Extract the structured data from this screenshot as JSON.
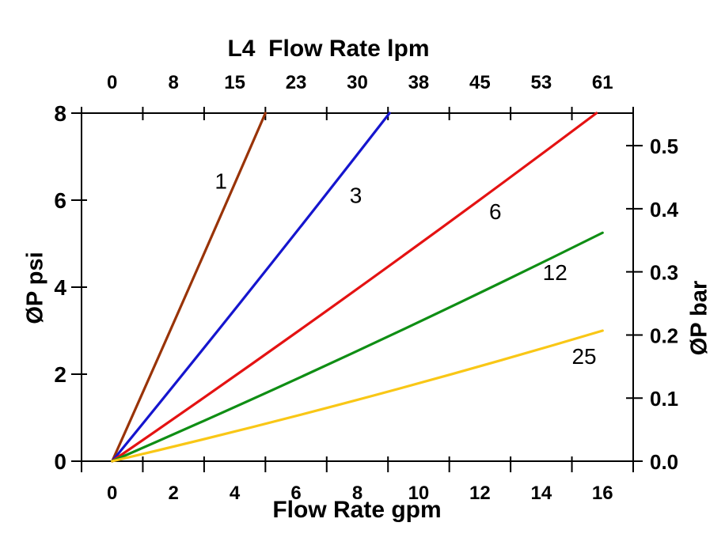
{
  "chart_data": {
    "type": "line",
    "title_top": "L4  Flow Rate lpm",
    "xlabel_bottom": "Flow Rate gpm",
    "ylabel_left": "ØP psi",
    "ylabel_right": "ØP bar",
    "x_axis_gpm": {
      "labels": [
        "0",
        "2",
        "4",
        "6",
        "8",
        "10",
        "12",
        "14",
        "16"
      ],
      "min": 0,
      "max": 16
    },
    "top_axis_lpm": {
      "labels": [
        "0",
        "8",
        "15",
        "23",
        "30",
        "38",
        "45",
        "53",
        "61"
      ]
    },
    "left_axis_psi": {
      "labels": [
        "0",
        "2",
        "4",
        "6",
        "8"
      ],
      "min": 0,
      "max": 8
    },
    "right_axis_bar": {
      "labels": [
        "0.0",
        "0.1",
        "0.2",
        "0.3",
        "0.4",
        "0.5"
      ],
      "psi_per_bar": 14.504
    },
    "grid": false,
    "legend": "labels-next-to-curves",
    "series": [
      {
        "name": "1",
        "color": "#993307",
        "points_gpm_psi": [
          [
            0,
            0
          ],
          [
            5.0,
            8.0
          ]
        ],
        "label": "1",
        "label_pos_gpm_psi": [
          3.55,
          6.45
        ]
      },
      {
        "name": "3",
        "color": "#1515CE",
        "points_gpm_psi": [
          [
            0,
            0
          ],
          [
            9.05,
            8.0
          ]
        ],
        "label": "3",
        "label_pos_gpm_psi": [
          7.95,
          6.12
        ]
      },
      {
        "name": "6",
        "color": "#E41212",
        "points_gpm_psi": [
          [
            0,
            0
          ],
          [
            15.8,
            8.0
          ]
        ],
        "label": "6",
        "label_pos_gpm_psi": [
          12.5,
          5.75
        ]
      },
      {
        "name": "12",
        "color": "#0F8E14",
        "points_gpm_psi": [
          [
            0,
            0
          ],
          [
            16.0,
            5.25
          ]
        ],
        "label": "12",
        "label_pos_gpm_psi": [
          14.45,
          4.35
        ]
      },
      {
        "name": "25",
        "color": "#F9C716",
        "points_gpm_psi": [
          [
            0,
            0
          ],
          [
            16.0,
            3.0
          ]
        ],
        "label": "25",
        "label_pos_gmp_psi_note": "",
        "label_pos_gpm_psi": [
          15.4,
          2.42
        ]
      }
    ]
  },
  "colors": {
    "background": "#FFFFFF",
    "axis": "#000000",
    "text": "#000000"
  }
}
